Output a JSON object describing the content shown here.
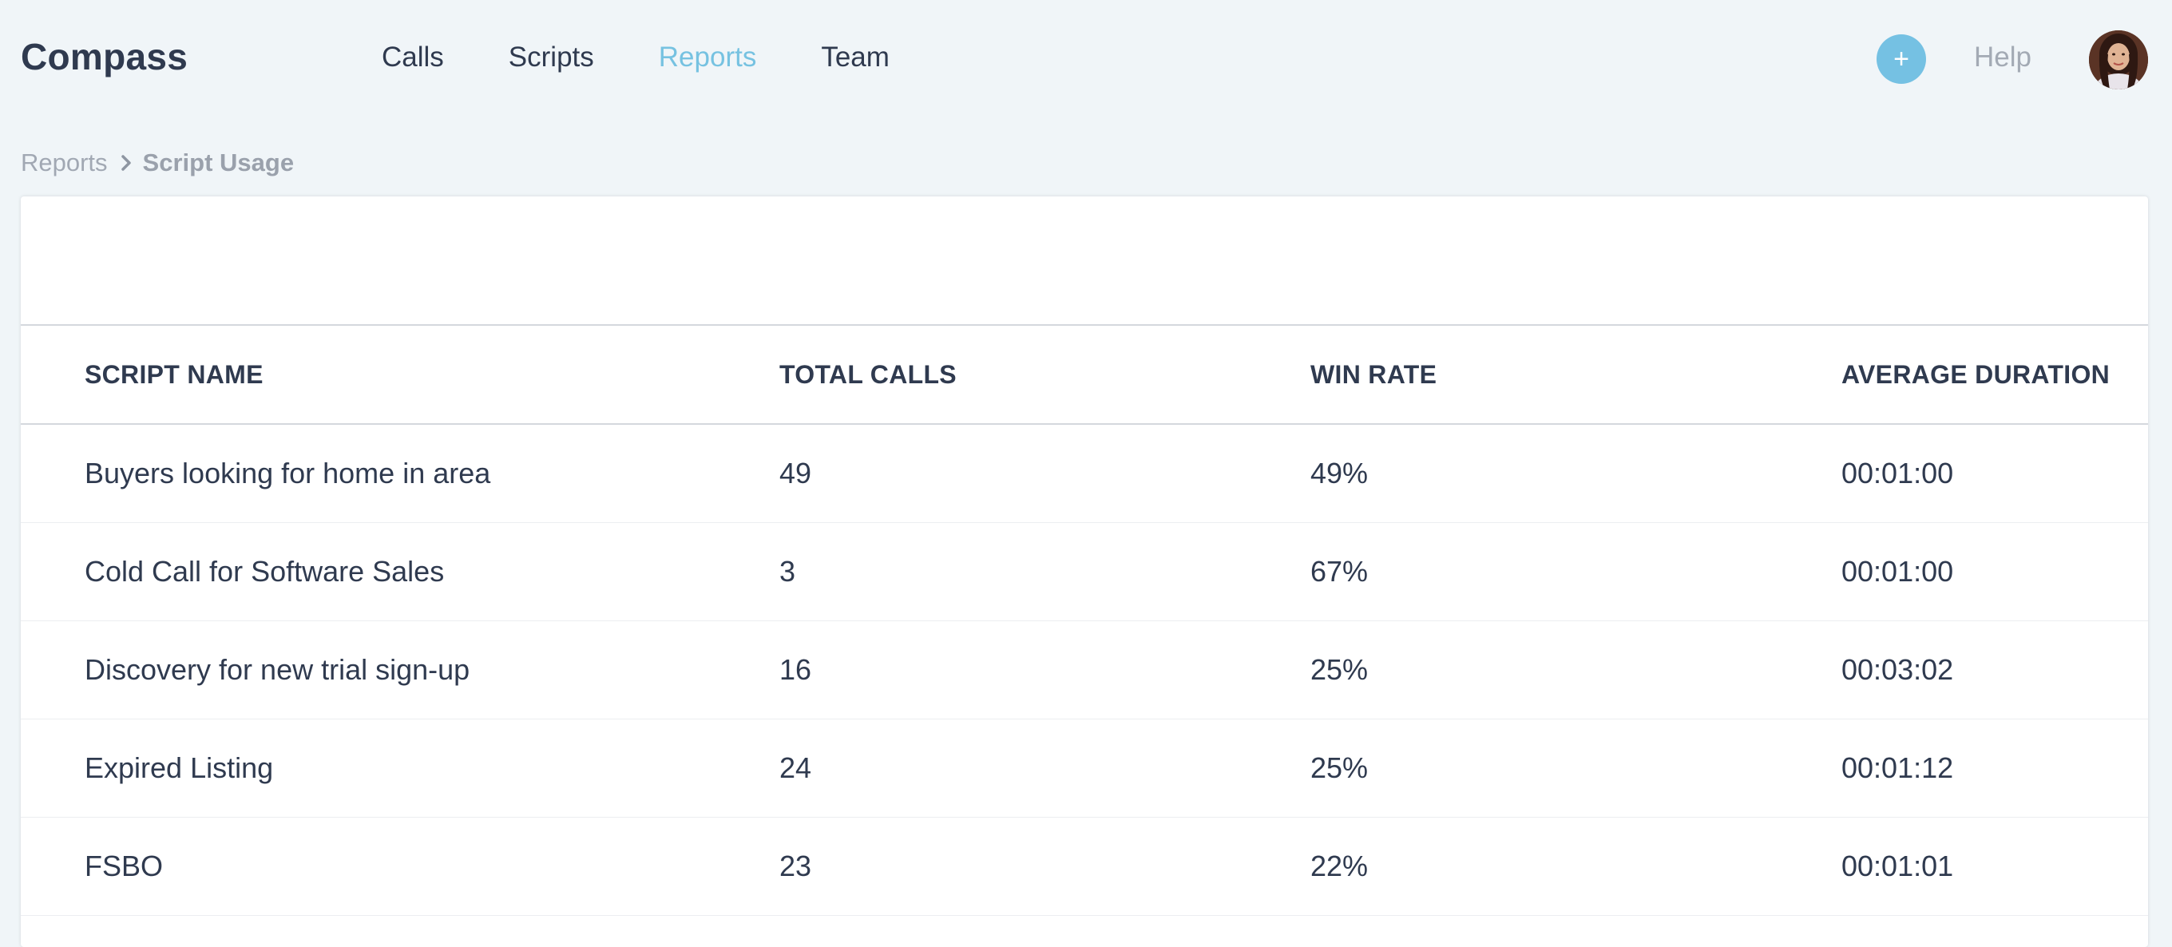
{
  "app": {
    "brand": "Compass"
  },
  "nav": {
    "items": [
      {
        "label": "Calls",
        "active": false
      },
      {
        "label": "Scripts",
        "active": false
      },
      {
        "label": "Reports",
        "active": true
      },
      {
        "label": "Team",
        "active": false
      }
    ],
    "add_label": "+",
    "help_label": "Help"
  },
  "breadcrumb": {
    "parent": "Reports",
    "current": "Script Usage"
  },
  "table": {
    "headers": [
      "SCRIPT NAME",
      "TOTAL CALLS",
      "WIN RATE",
      "AVERAGE DURATION"
    ],
    "rows": [
      [
        "Buyers looking for home in area",
        "49",
        "49%",
        "00:01:00"
      ],
      [
        "Cold Call for Software Sales",
        "3",
        "67%",
        "00:01:00"
      ],
      [
        "Discovery for new trial sign-up",
        "16",
        "25%",
        "00:03:02"
      ],
      [
        "Expired Listing",
        "24",
        "25%",
        "00:01:12"
      ],
      [
        "FSBO",
        "23",
        "22%",
        "00:01:01"
      ]
    ]
  },
  "colors": {
    "accent": "#76c2e1",
    "text": "#2f3a4f",
    "muted": "#a3aab4",
    "background": "#f0f5f8"
  },
  "icons": {
    "add": "plus-icon",
    "breadcrumb_separator": "chevron-right-icon",
    "avatar": "user-avatar"
  }
}
